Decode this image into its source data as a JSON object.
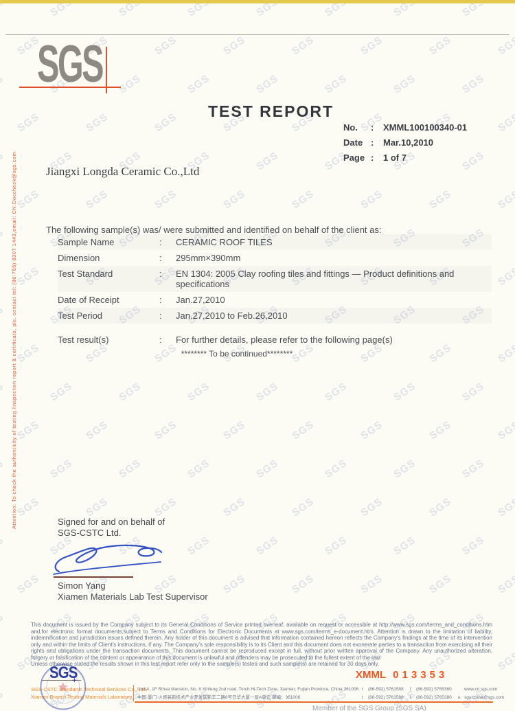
{
  "colors": {
    "accent_red": "#e0512c",
    "logo_gray": "#8e8982",
    "footer_orange": "#f0892f",
    "serial_orange": "#f2571f",
    "stamp_blue": "#2b3f9e",
    "signature_blue": "#3352c4",
    "top_strip_yellow": "#e5c94e"
  },
  "watermark": {
    "text": "SGS"
  },
  "logo": {
    "text": "SGS"
  },
  "side_note": "Attention: To check the authenticity of testing /inspection report & certificate, pls. contact tel: (86-755) 8307 1443,email: CN.Doccheck@sgs.com",
  "header": {
    "title": "TEST REPORT",
    "fields": [
      {
        "label": "No.",
        "colon": ":",
        "value": "XMML100100340-01"
      },
      {
        "label": "Date",
        "colon": ":",
        "value": "Mar.10,2010"
      },
      {
        "label": "Page",
        "colon": ":",
        "value": "1 of 7"
      }
    ]
  },
  "client_name": "Jiangxi Longda Ceramic Co.,Ltd",
  "intro": "The following sample(s) was/ were submitted and identified on behalf of the client as:",
  "sample": {
    "colon": ":",
    "fields": [
      {
        "label": "Sample Name",
        "value": "CERAMIC ROOF TILES"
      },
      {
        "label": "Dimension",
        "value": "295mm×390mm"
      },
      {
        "label": "Test Standard",
        "value": "EN 1304: 2005 Clay roofing tiles and fittings — Product definitions and specifications"
      },
      {
        "label": "Date of Receipt",
        "value": "Jan.27,2010"
      },
      {
        "label": "Test Period",
        "value": "Jan.27,2010 to Feb.26,2010"
      }
    ],
    "result_label": "Test result(s)",
    "result_value": "For further details, please refer to the following page(s)",
    "continued": "******** To be continued********"
  },
  "signature": {
    "line1": "Signed for and on behalf of",
    "line2": "SGS-CSTC Ltd.",
    "name": "Simon Yang",
    "title": "Xiamen Materials Lab Test Supervisor"
  },
  "legal": {
    "paragraph": "This document is issued by the Company subject to its General Conditions of Service printed overleaf, available on request or accessible at http://www.sgs.com/terms_and_conditions.htm and,for electronic format documents,subject to Terms and Conditions for Electronic Documents at www.sgs.com/terms_e-document.htm. Attention is drawn to the limitation of liability, indemnification and jurisdiction issues defined therein. Any holder of this document is advised that information contained hereon reflects the Company's findings at the time of its intervention only and within the limits of Client's instructions, if any. The Company's sole responsibility is to its Client and this document does not exonerate parties to a transaction from exercising all their rights and obligations under the transaction documents. This document cannot be reproduced except in full, without prior written approval of the Company. Any unauthorized alteration, forgery or falsification of the content or appearance of this document is unlawful and offenders may be prosecuted to the fullest extent of the law.",
    "retention": "Unless otherwise stated the results shown in this test report refer only to the sample(s) tested and such sample(s) are retained for 30 days only."
  },
  "footer": {
    "logo_text": "SGS",
    "logo_cross": "+",
    "company_line1": "SGS-CSTC Standards Technical Services Co., Ltd.",
    "company_line2": "Xiamen Branch Testing Materials Laboratory",
    "serial_prefix": "XMML",
    "serial_digits": "013353",
    "rows": [
      {
        "address": "Unit A, 1F Rihua Mansion, No. 8 Xinfeng 2nd road, Torch Hi-Tech Zone, Xiamen, Fujian Province, China 361006",
        "tel_label": "t",
        "tel": "(86-592) 5761588",
        "fax_label": "f",
        "fax": "(86-592) 5765380",
        "extra_label": "",
        "extra": "www.cn.sgs.com"
      },
      {
        "address": "中国·厦门·火炬高新技术产业开发区新丰二路8号日华大厦一层A单元  邮编：361006",
        "tel_label": "t",
        "tel": "(86-592) 5761588",
        "fax_label": "f",
        "fax": "(86-592) 5765380",
        "extra_label": "e",
        "extra": "sgs.china@sgs.com"
      }
    ],
    "member_note": "Member of the SGS Group (SGS SA)"
  }
}
